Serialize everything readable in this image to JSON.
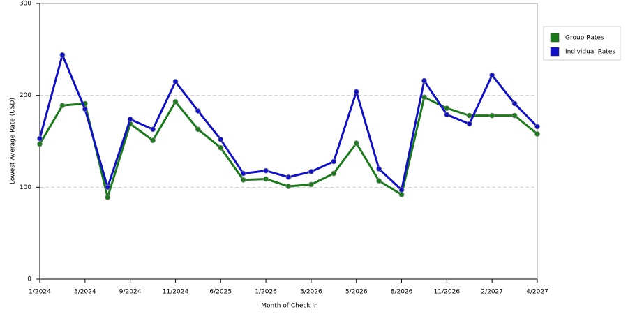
{
  "chart_data": {
    "type": "line",
    "x_label": "Month of Check In",
    "y_label": "Lowest Average Rate (USD)",
    "categories": [
      "1/2024",
      null,
      "3/2024",
      null,
      "9/2024",
      null,
      "11/2024",
      null,
      "6/2025",
      null,
      "1/2026",
      null,
      "3/2026",
      null,
      "5/2026",
      null,
      "8/2026",
      null,
      "11/2026",
      null,
      "2/2027",
      null,
      "4/2027"
    ],
    "series": [
      {
        "name": "Group Rates",
        "color": "#1a7a1a",
        "values": [
          147,
          189,
          191,
          89,
          169,
          151,
          193,
          163,
          143,
          108,
          109,
          101,
          103,
          115,
          148,
          107,
          92,
          198,
          186,
          178,
          178,
          178,
          158
        ]
      },
      {
        "name": "Individual Rates",
        "color": "#1010c8",
        "values": [
          153,
          244,
          185,
          100,
          174,
          163,
          215,
          183,
          152,
          115,
          118,
          111,
          117,
          128,
          204,
          120,
          97,
          216,
          179,
          169,
          222,
          191,
          166
        ]
      }
    ],
    "ylim": [
      0,
      300
    ],
    "yticks": [
      0,
      100,
      200,
      300
    ],
    "grid": true,
    "legend": "right"
  }
}
